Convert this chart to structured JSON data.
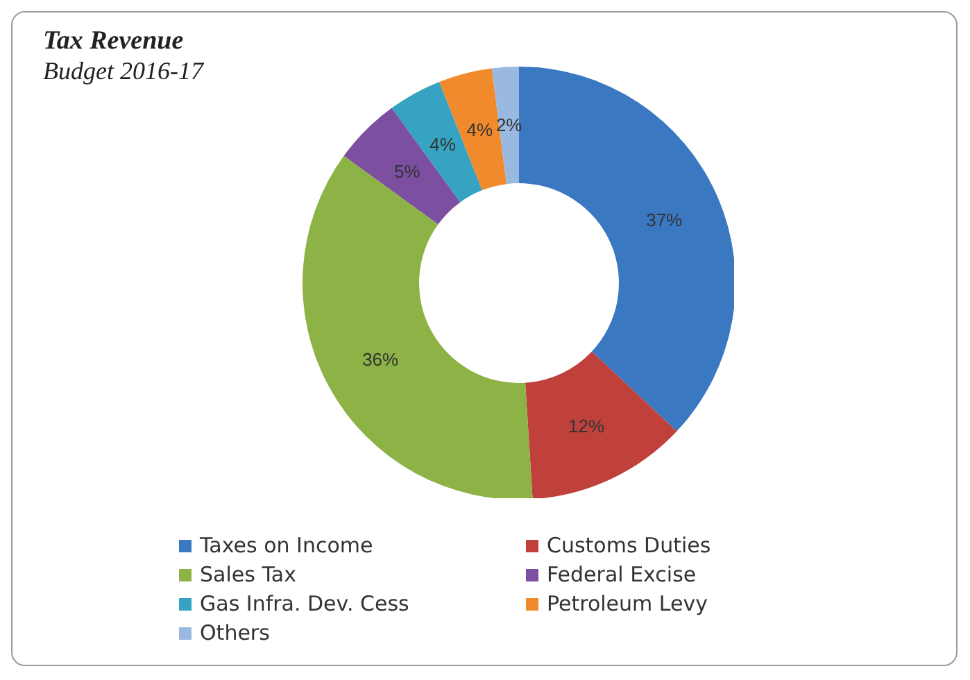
{
  "chart_data": {
    "type": "donut",
    "title": "Tax Revenue",
    "subtitle": "Budget 2016-17",
    "categories": [
      "Taxes on Income",
      "Customs Duties",
      "Sales Tax",
      "Federal Excise",
      "Gas Infra. Dev. Cess",
      "Petroleum Levy",
      "Others"
    ],
    "values": [
      37,
      12,
      36,
      5,
      4,
      4,
      2
    ],
    "colors": [
      "#3b78c2",
      "#c0403c",
      "#8db245",
      "#7c4fa0",
      "#35a3c1",
      "#f08a2c",
      "#9ab9e0"
    ],
    "value_labels": [
      "37%",
      "12%",
      "36%",
      "5%",
      "4%",
      "4%",
      "2%"
    ],
    "legend": "bottom"
  }
}
